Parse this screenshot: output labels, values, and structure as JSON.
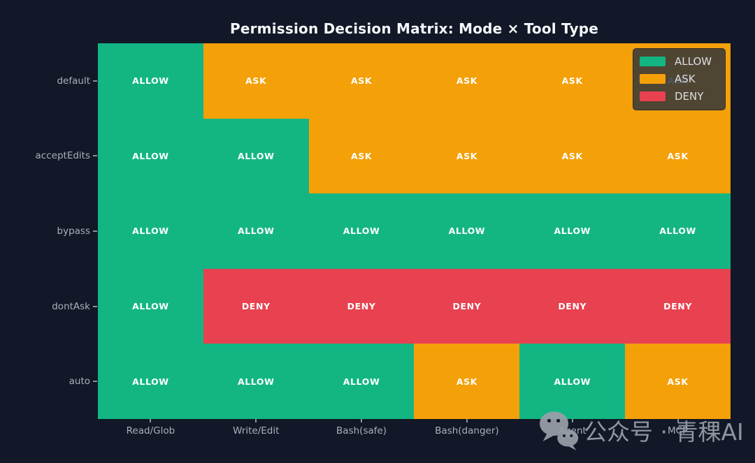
{
  "title": "Permission Decision Matrix: Mode × Tool Type",
  "colors": {
    "background": "#121827",
    "allow": "#13b683",
    "ask": "#f4a009",
    "deny": "#e84150",
    "tick_label": "#a9afbb",
    "cell_text": "#ffffff"
  },
  "legend": {
    "position": "upper right",
    "items": [
      {
        "label": "ALLOW",
        "color": "#13b683"
      },
      {
        "label": "ASK",
        "color": "#f4a009"
      },
      {
        "label": "DENY",
        "color": "#e84150"
      }
    ]
  },
  "watermark": {
    "icon": "wechat-icon",
    "text": "公众号 · 青稞AI"
  },
  "chart_data": {
    "type": "heatmap",
    "title": "Permission Decision Matrix: Mode × Tool Type",
    "x_categories": [
      "Read/Glob",
      "Write/Edit",
      "Bash(safe)",
      "Bash(danger)",
      "Agent",
      "MCP"
    ],
    "y_categories": [
      "default",
      "acceptEdits",
      "bypass",
      "dontAsk",
      "auto"
    ],
    "values": [
      [
        "ALLOW",
        "ASK",
        "ASK",
        "ASK",
        "ASK",
        "ASK"
      ],
      [
        "ALLOW",
        "ALLOW",
        "ASK",
        "ASK",
        "ASK",
        "ASK"
      ],
      [
        "ALLOW",
        "ALLOW",
        "ALLOW",
        "ALLOW",
        "ALLOW",
        "ALLOW"
      ],
      [
        "ALLOW",
        "DENY",
        "DENY",
        "DENY",
        "DENY",
        "DENY"
      ],
      [
        "ALLOW",
        "ALLOW",
        "ALLOW",
        "ASK",
        "ALLOW",
        "ASK"
      ]
    ],
    "value_colors": {
      "ALLOW": "#13b683",
      "ASK": "#f4a009",
      "DENY": "#e84150"
    },
    "xlabel": "",
    "ylabel": "",
    "grid": false,
    "legend_position": "upper right"
  }
}
